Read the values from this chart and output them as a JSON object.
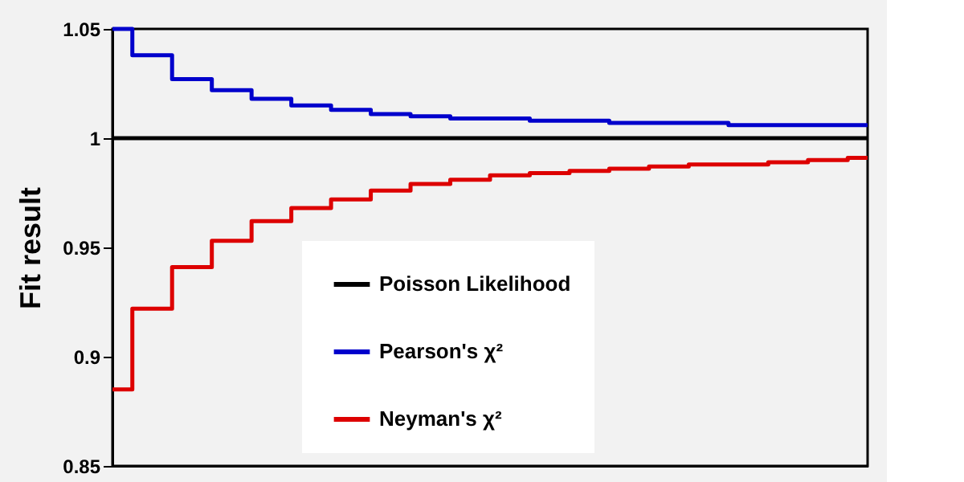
{
  "chart_data": {
    "type": "step",
    "ylabel": "Fit result",
    "categories": [
      null,
      null,
      null,
      null,
      null,
      null,
      null,
      null,
      null,
      null,
      null,
      null,
      null,
      null,
      null,
      null,
      null,
      null,
      null,
      null
    ],
    "series": [
      {
        "name": "Poisson Likelihood",
        "color": "#000000",
        "values": [
          1,
          1,
          1,
          1,
          1,
          1,
          1,
          1,
          1,
          1,
          1,
          1,
          1,
          1,
          1,
          1,
          1,
          1,
          1,
          1
        ]
      },
      {
        "name": "Pearson's χ²",
        "color": "#0000cc",
        "values": [
          1.05,
          1.038,
          1.027,
          1.022,
          1.018,
          1.015,
          1.013,
          1.011,
          1.01,
          1.009,
          1.009,
          1.008,
          1.008,
          1.007,
          1.007,
          1.007,
          1.006,
          1.006,
          1.006,
          1.006
        ]
      },
      {
        "name": "Neyman's χ²",
        "color": "#dd0000",
        "values": [
          0.885,
          0.922,
          0.941,
          0.953,
          0.962,
          0.968,
          0.972,
          0.976,
          0.979,
          0.981,
          0.983,
          0.984,
          0.985,
          0.986,
          0.987,
          0.988,
          0.988,
          0.989,
          0.99,
          0.991
        ]
      }
    ],
    "ylim": [
      0.85,
      1.05
    ],
    "yticks": [
      0.85,
      0.9,
      0.95,
      1,
      1.05
    ],
    "grid": false,
    "legend": "bottom",
    "tick_labels": "y"
  }
}
